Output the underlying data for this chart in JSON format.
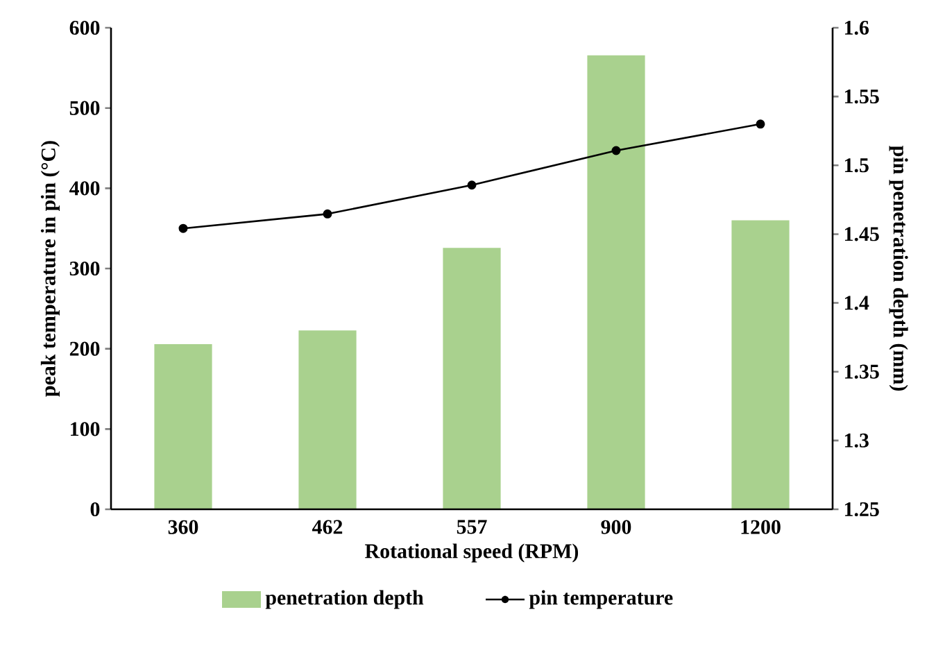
{
  "chart_data": {
    "type": "bar",
    "xlabel": "Rotational speed (RPM)",
    "ylabel": "peak temperature in pin (°C)",
    "y2label": "pin penetration depth (mm)",
    "categories": [
      "360",
      "462",
      "557",
      "900",
      "1200"
    ],
    "series": [
      {
        "name": "penetration depth",
        "axis": "y2",
        "color": "#a9d18e",
        "values": [
          1.37,
          1.38,
          1.44,
          1.58,
          1.46
        ]
      },
      {
        "name": "pin temperature",
        "type": "line",
        "color": "#000000",
        "values": [
          350,
          368,
          404,
          447,
          480
        ]
      }
    ],
    "ylim": [
      0,
      600
    ],
    "yticks": [
      0,
      100,
      200,
      300,
      400,
      500,
      600
    ],
    "y2lim": [
      1.25,
      1.6
    ],
    "y2ticks": [
      1.25,
      1.3,
      1.35,
      1.4,
      1.45,
      1.5,
      1.55,
      1.6
    ],
    "marker": "circle",
    "legend": "bottom"
  }
}
